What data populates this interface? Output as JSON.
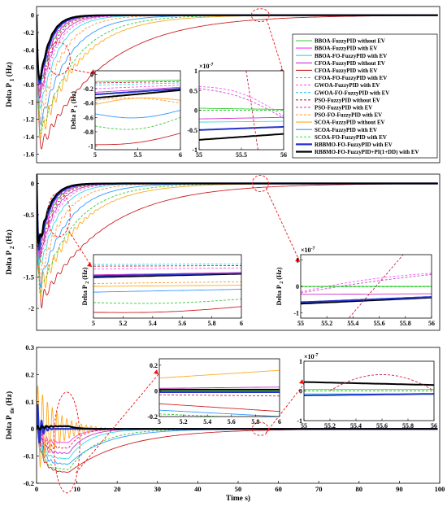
{
  "colors": {
    "bboa_no": "#33cc33",
    "bboa_ev": "#ff33ff",
    "bboa_fo": "#33dddd",
    "cfoa_no": "#cc33cc",
    "cfoa_ev": "#cc2222",
    "cfoa_fo": "#33cc33",
    "gwoa": "#ff55ff",
    "gwoa_fo": "#33bbee",
    "pso_no": "#cc2244",
    "pso_ev": "#cc44cc",
    "pso_fo": "#ff9933",
    "scoa_no": "#ffaa22",
    "scoa_ev": "#3399ff",
    "scoa_fo": "#44ee44",
    "rbbmo_ev": "#2233cc",
    "rbbmo_pid": "#000000",
    "zoom_marker": "#ee1111"
  },
  "chart_data": [
    {
      "type": "line",
      "id": "p1",
      "ylabel": "Delta P",
      "ylabel_sub": "1",
      "ylabel_unit": "(Hz)",
      "xlim": [
        0,
        100
      ],
      "ylim": [
        -1.7,
        0.1
      ],
      "yticks": [
        "0",
        "-0.2",
        "-0.4",
        "-0.6",
        "-0.8",
        "-1",
        "-1.2",
        "-1.4",
        "-1.6"
      ],
      "legend_position": "top-right",
      "legend": [
        {
          "name": "BBOA-FuzzyPID without EV",
          "color": "#33cc33",
          "dash": false
        },
        {
          "name": "BBOA-FuzzyPID with EV",
          "color": "#ff33ff",
          "dash": false
        },
        {
          "name": "BBOA-FO-FuzzyPID with EV",
          "color": "#33dddd",
          "dash": false
        },
        {
          "name": "CFOA-FuzzyPID without EV",
          "color": "#cc33cc",
          "dash": false
        },
        {
          "name": "CFOA-FuzzyPID with EV",
          "color": "#cc2222",
          "dash": false
        },
        {
          "name": "CFOA-FO-FuzzyPID with EV",
          "color": "#33cc33",
          "dash": true
        },
        {
          "name": "GWOA-FuzzyPID with EV",
          "color": "#ff55ff",
          "dash": true
        },
        {
          "name": "GWOA-FO-FuzzyPID with EV",
          "color": "#33bbee",
          "dash": true
        },
        {
          "name": "PSO-FuzzyPID without EV",
          "color": "#cc2244",
          "dash": true
        },
        {
          "name": "PSO-FuzzyPID with EV",
          "color": "#cc44cc",
          "dash": true
        },
        {
          "name": "PSO-FO-FuzzyPID with EV",
          "color": "#ff9933",
          "dash": true
        },
        {
          "name": "SCOA-FuzzyPID without EV",
          "color": "#ffaa22",
          "dash": false
        },
        {
          "name": "SCOA-FuzzyPID with EV",
          "color": "#3399ff",
          "dash": false
        },
        {
          "name": "SCOA-FO-FuzzyPID with EV",
          "color": "#44ee44",
          "dash": true
        },
        {
          "name": "RBBMO-FO-FuzzyPID with EV",
          "color": "#2233cc",
          "dash": false,
          "bold": true
        },
        {
          "name": "RBBMO-FO-FuzzyPID+PI(1+DD) with EV",
          "color": "#000000",
          "dash": false,
          "bold": true
        }
      ],
      "insets": [
        {
          "xlim": [
            5,
            6
          ],
          "ylim": [
            -1.05,
            0.05
          ],
          "xticks": [
            "5",
            "5.5",
            "6"
          ],
          "yticks": [
            "0",
            "-0.2",
            "-0.4",
            "-0.6",
            "-0.8",
            "-1"
          ],
          "ylabel": "Delta P",
          "ylabel_sub": "1",
          "ylabel_unit": "(Hz)",
          "exponent": ""
        },
        {
          "xlim": [
            55,
            56
          ],
          "ylim": [
            -1.0,
            1.0
          ],
          "xticks": [
            "55",
            "55.5",
            "56"
          ],
          "yticks": [
            "1",
            "0.5",
            "0",
            "-0.5",
            "-1"
          ],
          "ylabel": "",
          "ylabel_sub": "",
          "ylabel_unit": "",
          "exponent": "×10",
          "exponent_power": "-7"
        }
      ]
    },
    {
      "type": "line",
      "id": "p2",
      "ylabel": "Delta P",
      "ylabel_sub": "2",
      "ylabel_unit": "(Hz)",
      "xlim": [
        0,
        100
      ],
      "ylim": [
        -2.35,
        0.15
      ],
      "yticks": [
        "0",
        "-0.5",
        "-1",
        "-1.5",
        "-2"
      ],
      "insets": [
        {
          "xlim": [
            5,
            6
          ],
          "ylim": [
            -1.05,
            0.05
          ],
          "xticks": [
            "5",
            "5.2",
            "5.4",
            "5.6",
            "5.8",
            "6"
          ],
          "yticks": [],
          "ylabel": "Delta P",
          "ylabel_sub": "2",
          "ylabel_unit": "(Hz)",
          "exponent": ""
        },
        {
          "xlim": [
            55,
            56
          ],
          "ylim": [
            -1.2,
            1.2
          ],
          "xticks": [
            "55",
            "55.2",
            "55.4",
            "55.6",
            "55.8",
            "56"
          ],
          "yticks": [
            "1",
            "0",
            "-1"
          ],
          "ylabel": "Delta P",
          "ylabel_sub": "2",
          "ylabel_unit": "(Hz)",
          "exponent": "×10",
          "exponent_power": "-7"
        }
      ]
    },
    {
      "type": "line",
      "id": "ptie",
      "ylabel": "Delta P",
      "ylabel_sub": "tie",
      "ylabel_unit": "(Hz)",
      "xlabel": "Time s)",
      "xlim": [
        0,
        100
      ],
      "ylim": [
        -0.2,
        0.3
      ],
      "yticks": [
        "0.3",
        "0.2",
        "0.1",
        "0",
        "-0.1",
        "-0.2"
      ],
      "xticks": [
        "0",
        "10",
        "20",
        "30",
        "40",
        "50",
        "60",
        "70",
        "80",
        "90",
        "100"
      ],
      "insets": [
        {
          "xlim": [
            5,
            6
          ],
          "ylim": [
            -0.2,
            0.25
          ],
          "xticks": [
            "5",
            "5.2",
            "5.4",
            "5.6",
            "5.8",
            "6"
          ],
          "yticks": [
            "0.2",
            "0",
            "-0.2"
          ],
          "ylabel": "",
          "ylabel_sub": "",
          "ylabel_unit": "",
          "exponent": ""
        },
        {
          "xlim": [
            55,
            56
          ],
          "ylim": [
            -1.0,
            1.0
          ],
          "xticks": [
            "55",
            "55.2",
            "55.4",
            "55.6",
            "55.8",
            "56"
          ],
          "yticks": [
            "1",
            "0",
            "-1"
          ],
          "ylabel": "",
          "ylabel_sub": "",
          "ylabel_unit": "",
          "exponent": "×10",
          "exponent_power": "-7"
        }
      ]
    }
  ]
}
